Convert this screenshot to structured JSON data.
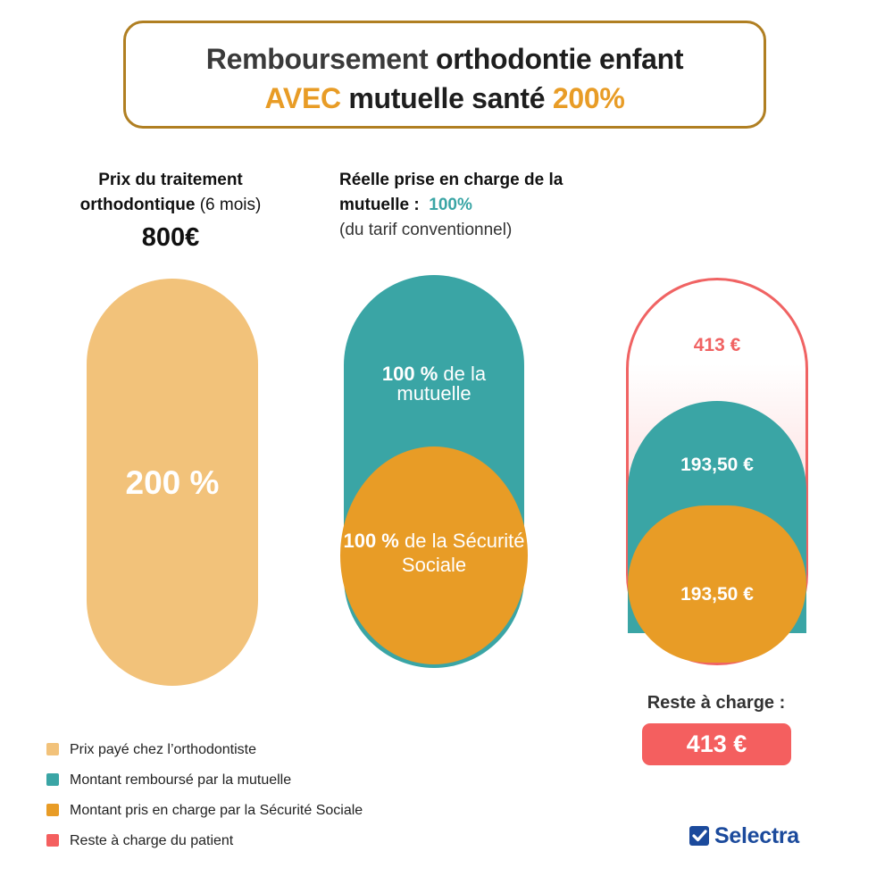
{
  "title": {
    "line1_a": "Remboursement",
    "line1_b": "orthodontie enfant",
    "line2_a": "AVEC",
    "line2_b": "mutuelle santé",
    "line2_c": "200%"
  },
  "column1": {
    "header_bold": "Prix du traitement orthodontique",
    "header_normal": "(6 mois)",
    "price": "800€",
    "pill_label": "200 %"
  },
  "column2": {
    "header_bold": "Réelle prise en charge de la mutuelle :",
    "header_pct": "100%",
    "header_note": "(du tarif conventionnel)",
    "top_pct": "100 %",
    "top_text": "de la mutuelle",
    "bottom_pct": "100 %",
    "bottom_text": "de la Sécurité Sociale"
  },
  "column3": {
    "reste_amount": "413 €",
    "mutuelle_amount": "193,50 €",
    "secu_amount": "193,50 €",
    "reste_label": "Reste à charge :",
    "reste_badge": "413 €"
  },
  "legend": [
    {
      "label": "Prix payé chez l’orthodontiste",
      "color": "#f2c27a"
    },
    {
      "label": "Montant remboursé par la mutuelle",
      "color": "#3aa5a5"
    },
    {
      "label": "Montant pris en charge par la Sécurité Sociale",
      "color": "#e89c26"
    },
    {
      "label": "Reste à charge du patient",
      "color": "#f45f5f"
    }
  ],
  "logo": {
    "text": "Selectra",
    "icon": "checkmark-icon"
  },
  "colors": {
    "price_paid": "#f2c27a",
    "mutuelle": "#3aa5a5",
    "securite_sociale": "#e89c26",
    "reste": "#f45f5f",
    "border": "#b07f22"
  }
}
